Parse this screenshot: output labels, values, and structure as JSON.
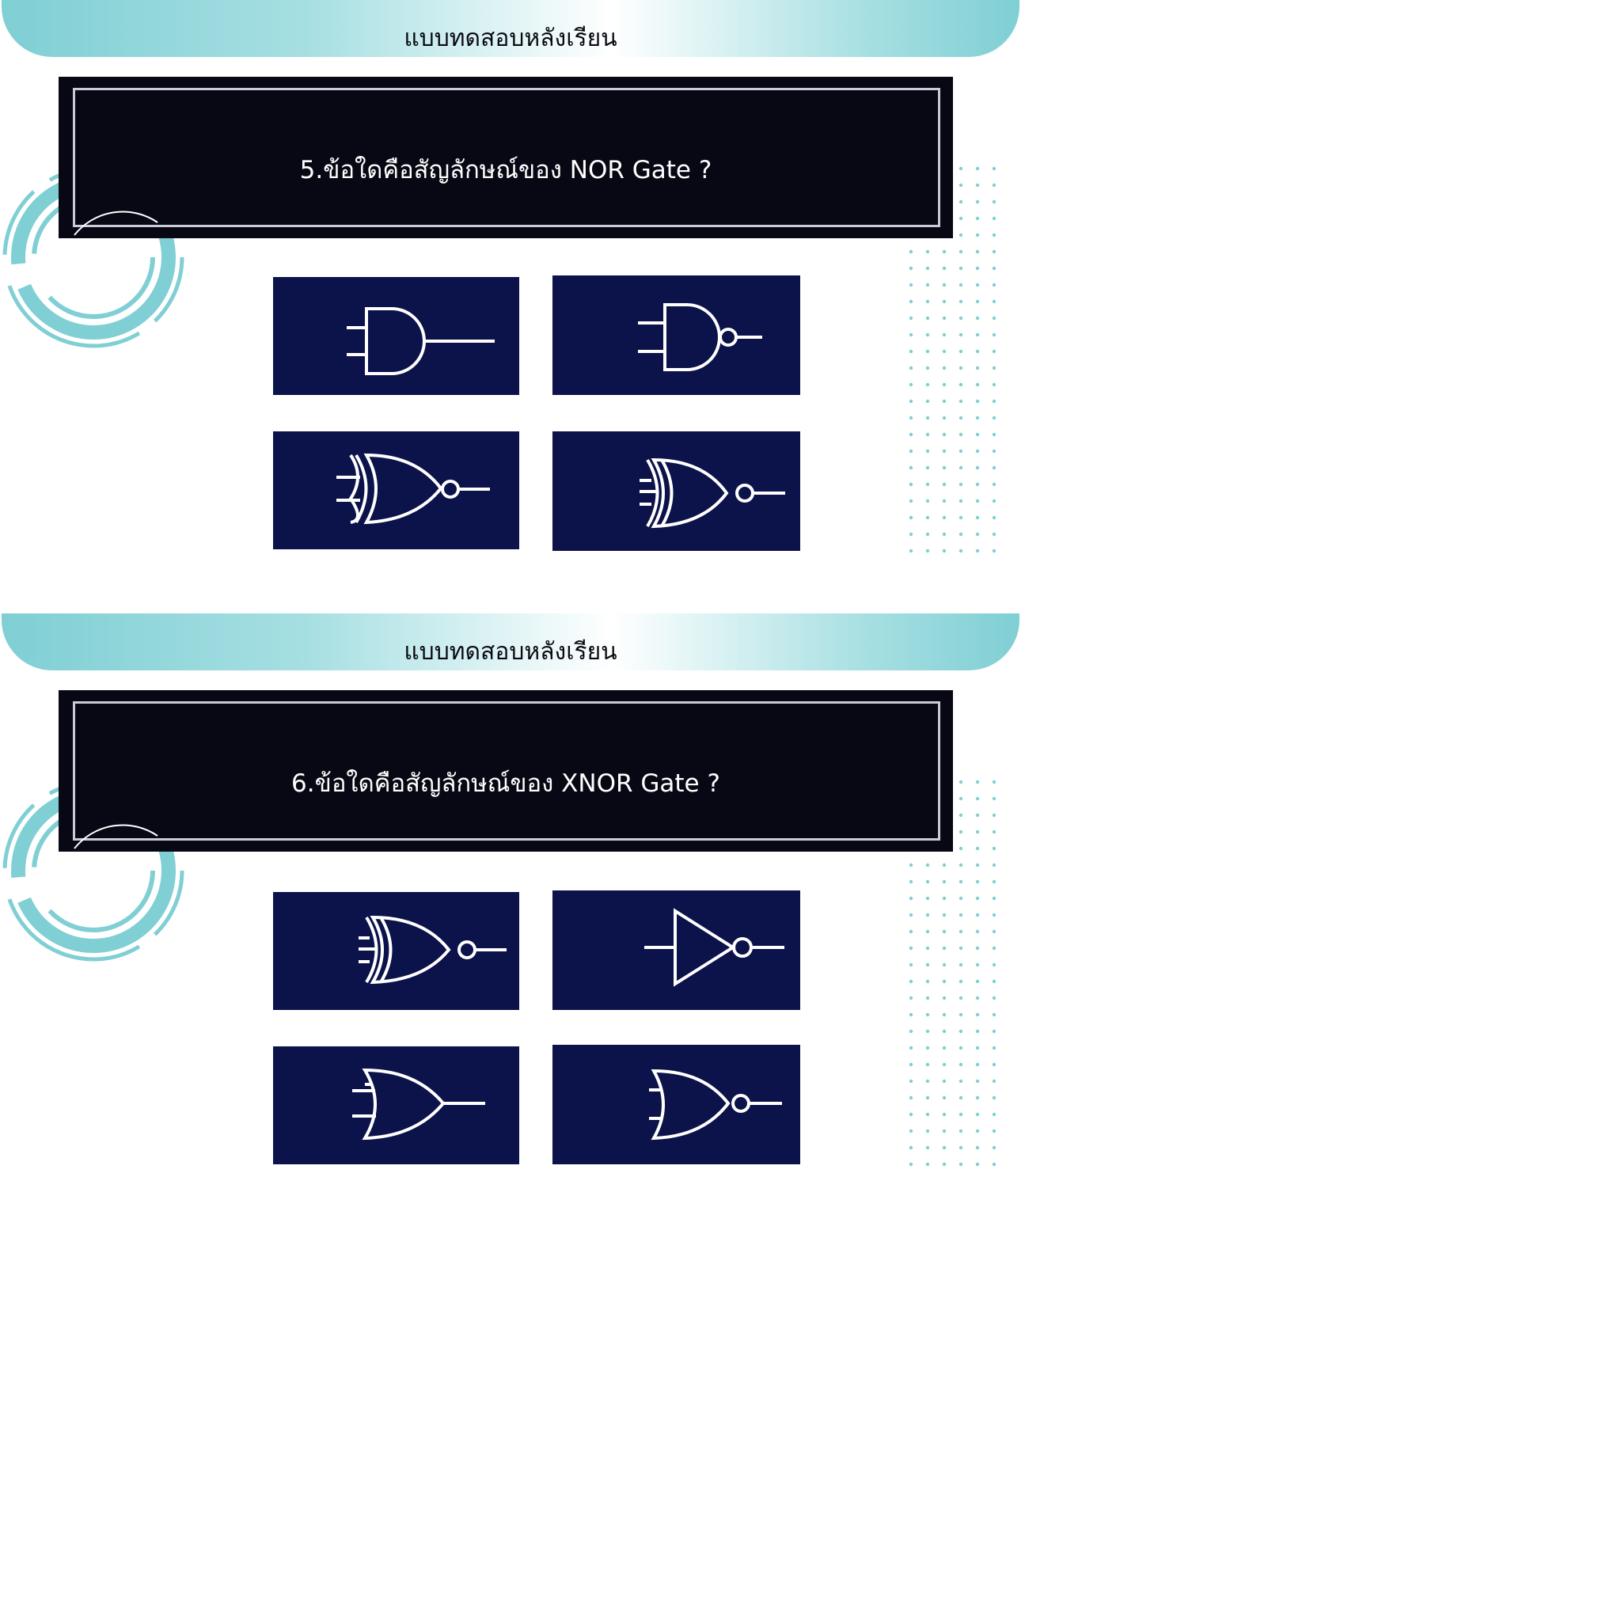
{
  "slides": [
    {
      "banner_title": "แบบทดสอบหลังเรียน",
      "question": "5.ข้อใดคือสัญลักษณ์ของ NOR Gate ?",
      "options": [
        {
          "icon": "and-gate-icon"
        },
        {
          "icon": "nand-gate-icon"
        },
        {
          "icon": "xnor-gate-icon"
        },
        {
          "icon": "xnor-gate-icon"
        }
      ]
    },
    {
      "banner_title": "แบบทดสอบหลังเรียน",
      "question": "6.ข้อใดคือสัญลักษณ์ของ XNOR Gate ?",
      "options": [
        {
          "icon": "xnor-gate-icon"
        },
        {
          "icon": "not-gate-icon"
        },
        {
          "icon": "or-gate-icon"
        },
        {
          "icon": "nor-gate-icon"
        }
      ]
    }
  ],
  "colors": {
    "banner_teal": "#7fcfd4",
    "question_box": "#080815",
    "option_bg": "#0c124a",
    "accent_dots": "#7fcfd4"
  }
}
